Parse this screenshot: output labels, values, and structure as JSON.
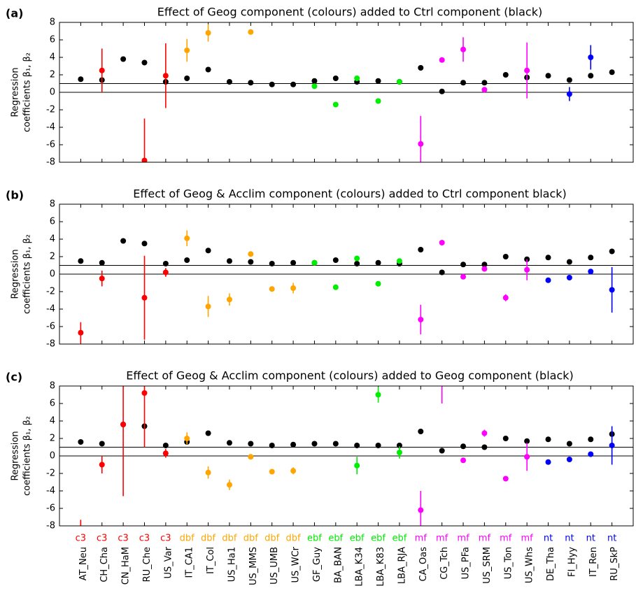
{
  "chart_data": [
    {
      "type": "errorbar",
      "panel": "(a)",
      "title": "Effect of Geog component (colours) added to Ctrl component (black)",
      "ylabel": [
        "Regression",
        "coefficients β₁, β₂"
      ],
      "ylim": [
        -8,
        8
      ],
      "yticks": [
        -8,
        -6,
        -4,
        -2,
        0,
        2,
        4,
        6,
        8
      ],
      "hlines": [
        0,
        1
      ],
      "series": [
        {
          "color": "#000000",
          "values": [
            1.5,
            1.4,
            3.8,
            3.4,
            1.2,
            1.6,
            2.6,
            1.2,
            1.1,
            0.9,
            0.9,
            1.3,
            1.6,
            1.2,
            1.3,
            1.2,
            2.8,
            0.1,
            1.1,
            1.1,
            2.0,
            1.7,
            1.9,
            1.4,
            1.9,
            2.3
          ]
        },
        {
          "colors": [
            "#ff0000",
            "#ff0000",
            "#ff0000",
            "#ff0000",
            "#ff0000",
            "#ffa500",
            "#ffa500",
            "#ffa500",
            "#ffa500",
            "#ffa500",
            "#ffa500",
            "#00ee00",
            "#00ee00",
            "#00ee00",
            "#00ee00",
            "#00ee00",
            "#ff00ff",
            "#ff00ff",
            "#ff00ff",
            "#ff00ff",
            "#ff00ff",
            "#ff00ff",
            "#0000ff",
            "#0000ff",
            "#0000ff",
            "#0000ff"
          ],
          "values": [
            null,
            2.5,
            null,
            -7.8,
            1.9,
            4.8,
            6.8,
            null,
            6.9,
            null,
            null,
            0.7,
            -1.4,
            1.6,
            -1.0,
            1.2,
            -5.9,
            3.7,
            4.9,
            0.3,
            null,
            2.5,
            null,
            -0.2,
            4.0,
            null
          ],
          "errors": [
            null,
            2.5,
            null,
            4.8,
            3.7,
            1.3,
            1.0,
            null,
            0.2,
            null,
            null,
            0.1,
            0.2,
            0.2,
            0.2,
            0.2,
            3.2,
            0.2,
            1.4,
            0.2,
            null,
            3.2,
            null,
            0.8,
            1.4,
            null
          ]
        }
      ]
    },
    {
      "type": "errorbar",
      "panel": "(b)",
      "title": "Effect of Geog & Acclim component (colours) added to Ctrl component black)",
      "ylabel": [
        "Regression",
        "coefficients β₁, β₂"
      ],
      "ylim": [
        -8,
        8
      ],
      "yticks": [
        -8,
        -6,
        -4,
        -2,
        0,
        2,
        4,
        6,
        8
      ],
      "hlines": [
        0,
        1
      ],
      "series": [
        {
          "color": "#000000",
          "values": [
            1.5,
            1.3,
            3.8,
            3.5,
            1.2,
            1.6,
            2.7,
            1.5,
            1.4,
            1.2,
            1.3,
            1.3,
            1.6,
            1.2,
            1.3,
            1.2,
            2.8,
            0.2,
            1.1,
            1.1,
            2.0,
            1.7,
            1.9,
            1.4,
            1.9,
            2.6
          ]
        },
        {
          "colors": [
            "#ff0000",
            "#ff0000",
            "#ff0000",
            "#ff0000",
            "#ff0000",
            "#ffa500",
            "#ffa500",
            "#ffa500",
            "#ffa500",
            "#ffa500",
            "#ffa500",
            "#00ee00",
            "#00ee00",
            "#00ee00",
            "#00ee00",
            "#00ee00",
            "#ff00ff",
            "#ff00ff",
            "#ff00ff",
            "#ff00ff",
            "#ff00ff",
            "#ff00ff",
            "#0000ff",
            "#0000ff",
            "#0000ff",
            "#0000ff"
          ],
          "values": [
            -6.7,
            -0.5,
            null,
            -2.7,
            0.2,
            4.1,
            -3.7,
            -2.9,
            2.3,
            -1.7,
            -1.6,
            1.3,
            -1.5,
            1.8,
            -1.1,
            1.5,
            -5.2,
            3.6,
            -0.3,
            0.6,
            -2.7,
            0.5,
            -0.7,
            -0.4,
            0.3,
            -1.8
          ],
          "errors": [
            1.2,
            0.9,
            null,
            4.8,
            0.5,
            0.9,
            1.2,
            0.7,
            0.2,
            0.3,
            0.6,
            0.1,
            0.3,
            0.2,
            0.2,
            0.3,
            1.7,
            0.2,
            0.2,
            0.3,
            0.4,
            1.2,
            0.1,
            0.1,
            0.1,
            2.6
          ]
        }
      ]
    },
    {
      "type": "errorbar",
      "panel": "(c)",
      "title": "Effect of Geog & Acclim component (colours) added to Geog component (black)",
      "ylabel": [
        "Regression",
        "coefficients β₁, β₂"
      ],
      "ylim": [
        -8,
        8
      ],
      "yticks": [
        -8,
        -6,
        -4,
        -2,
        0,
        2,
        4,
        6,
        8
      ],
      "hlines": [
        0,
        1
      ],
      "categories": [
        "AT_Neu",
        "CH_Cha",
        "CN_HaM",
        "RU_Che",
        "US_Var",
        "IT_CA1",
        "IT_Col",
        "US_Ha1",
        "US_MMS",
        "US_UMB",
        "US_WCr",
        "GF_Guy",
        "BA_BAN",
        "LBA_K34",
        "LBA_K83",
        "LBA_RJA",
        "CA_Oas",
        "CG_Tch",
        "US_PFa",
        "US_SRM",
        "US_Ton",
        "US_Whs",
        "DE_Tha",
        "FI_Hyy",
        "IT_Ren",
        "RU_SkP"
      ],
      "groups": [
        "c3",
        "c3",
        "c3",
        "c3",
        "c3",
        "dbf",
        "dbf",
        "dbf",
        "dbf",
        "dbf",
        "dbf",
        "ebf",
        "ebf",
        "ebf",
        "ebf",
        "ebf",
        "mf",
        "mf",
        "mf",
        "mf",
        "mf",
        "mf",
        "nt",
        "nt",
        "nt",
        "nt"
      ],
      "series": [
        {
          "color": "#000000",
          "values": [
            1.6,
            1.4,
            3.6,
            3.4,
            1.2,
            1.6,
            2.6,
            1.5,
            1.4,
            1.2,
            1.3,
            1.4,
            1.4,
            1.2,
            1.2,
            1.2,
            2.8,
            0.6,
            1.1,
            1.0,
            2.0,
            1.7,
            1.9,
            1.4,
            1.9,
            2.5
          ]
        },
        {
          "colors": [
            "#ff0000",
            "#ff0000",
            "#ff0000",
            "#ff0000",
            "#ff0000",
            "#ffa500",
            "#ffa500",
            "#ffa500",
            "#ffa500",
            "#ffa500",
            "#ffa500",
            "#00ee00",
            "#00ee00",
            "#00ee00",
            "#00ee00",
            "#00ee00",
            "#ff00ff",
            "#ff00ff",
            "#ff00ff",
            "#ff00ff",
            "#ff00ff",
            "#ff00ff",
            "#0000ff",
            "#0000ff",
            "#0000ff",
            "#0000ff"
          ],
          "values": [
            -8.8,
            -1.0,
            3.6,
            7.2,
            0.3,
            2.0,
            -1.9,
            -3.3,
            -0.1,
            -1.8,
            -1.7,
            null,
            null,
            -1.1,
            7.0,
            0.4,
            -6.2,
            8.5,
            -0.5,
            2.6,
            -2.6,
            -0.1,
            -0.7,
            -0.4,
            0.2,
            1.2
          ],
          "errors": [
            1.5,
            1.0,
            8.2,
            6.2,
            0.5,
            0.7,
            0.7,
            0.6,
            0.1,
            0.2,
            0.4,
            null,
            null,
            1.0,
            0.9,
            0.7,
            2.2,
            2.5,
            0.1,
            0.4,
            0.3,
            1.6,
            0.1,
            0.1,
            0.1,
            2.2
          ]
        }
      ]
    }
  ]
}
